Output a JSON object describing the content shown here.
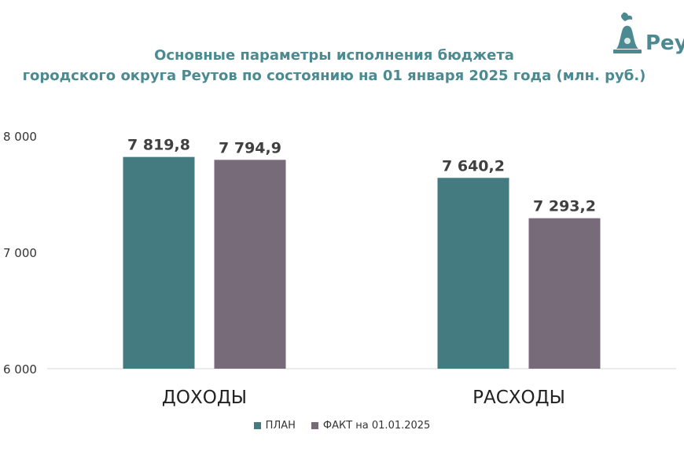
{
  "logo": {
    "text": "Реу",
    "icon": "bell-with-dove-icon"
  },
  "chart_data": {
    "type": "bar",
    "title_line1": "Основные параметры исполнения бюджета",
    "title_line2": "городского округа Реутов по состоянию на 01 января 2025 года (млн. руб.)",
    "categories": [
      "ДОХОДЫ",
      "РАСХОДЫ"
    ],
    "series": [
      {
        "name": "ПЛАН",
        "color": "#447b81",
        "values": [
          7819.8,
          7640.2
        ],
        "labels": [
          "7 819,8",
          "7 640,2"
        ]
      },
      {
        "name": "ФАКТ на 01.01.2025",
        "color": "#776a79",
        "values": [
          7794.9,
          7293.2
        ],
        "labels": [
          "7 794,9",
          "7 293,2"
        ]
      }
    ],
    "ylim": [
      6000,
      8000
    ],
    "yticks": [
      6000,
      7000,
      8000
    ],
    "ytick_labels": [
      "6 000",
      "7 000",
      "8 000"
    ],
    "grid": false,
    "legend_position": "bottom"
  }
}
